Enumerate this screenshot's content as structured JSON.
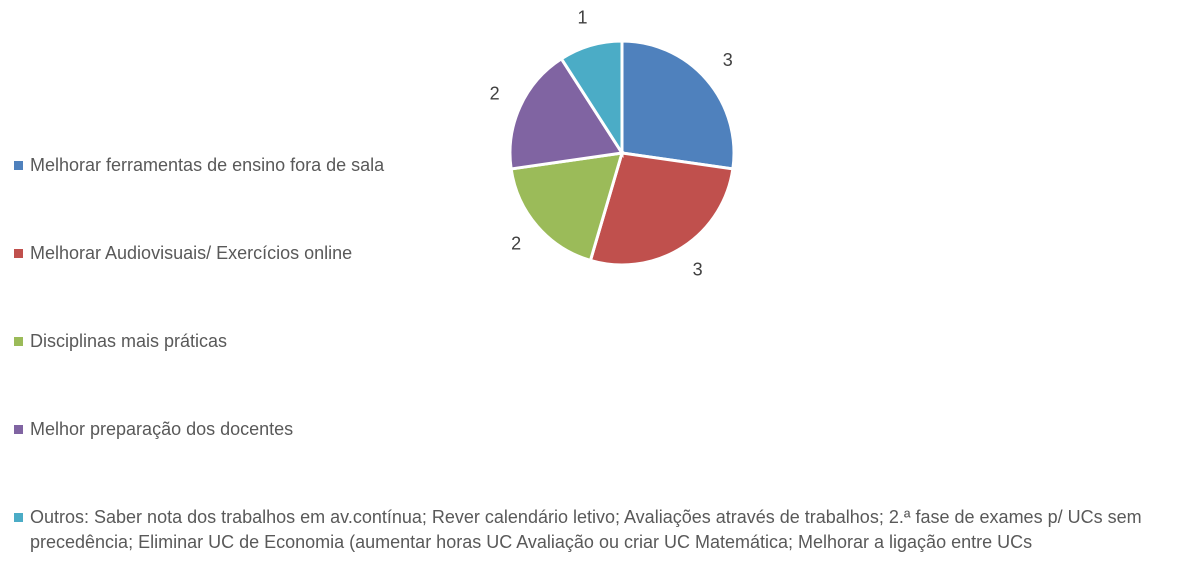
{
  "chart_data": {
    "type": "pie",
    "categories": [
      "Melhorar ferramentas de ensino fora de sala",
      "Melhorar Audiovisuais/ Exercícios online",
      "Disciplinas mais práticas",
      "Melhor preparação dos docentes",
      "Outros: Saber nota dos trabalhos em av.contínua; Rever calendário letivo; Avaliações através de trabalhos; 2.ª fase de exames p/ UCs sem precedência; Eliminar UC de Economia (aumentar horas  UC Avaliação ou criar UC Matemática; Melhorar a ligação entre UCs"
    ],
    "values": [
      3,
      3,
      2,
      2,
      1
    ],
    "colors": [
      "#4f81bd",
      "#c0504d",
      "#9bbb59",
      "#8064a2",
      "#4bacc6"
    ],
    "legend": "left"
  }
}
